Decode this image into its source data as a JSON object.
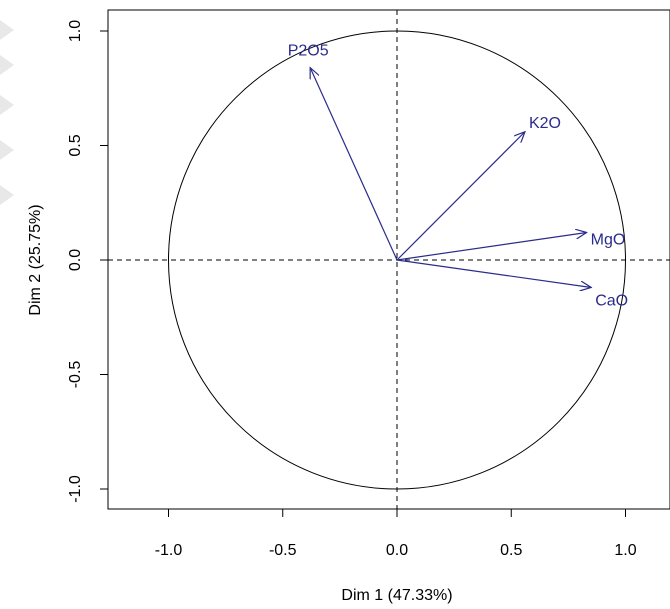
{
  "chart_data": {
    "type": "scatter",
    "subtype": "pca-correlation-circle",
    "title": "",
    "xlabel": "Dim 1 (47.33%)",
    "ylabel": "Dim 2 (25.75%)",
    "xlim": [
      -1.2,
      1.2
    ],
    "ylim": [
      -1.05,
      1.05
    ],
    "x_ticks": [
      -1.0,
      -0.5,
      0.0,
      0.5,
      1.0
    ],
    "x_tick_labels": [
      "-1.0",
      "-0.5",
      "0.0",
      "0.5",
      "1.0"
    ],
    "y_ticks": [
      -1.0,
      -0.5,
      0.0,
      0.5,
      1.0
    ],
    "y_tick_labels": [
      "-1.0",
      "-0.5",
      "0.0",
      "0.5",
      "1.0"
    ],
    "grid": false,
    "unit_circle": true,
    "reference_lines": [
      "x=0",
      "y=0"
    ],
    "arrow_color": "#2b2b8c",
    "label_color": "#2b2b8c",
    "vectors": [
      {
        "name": "P2O5",
        "x": -0.38,
        "y": 0.84
      },
      {
        "name": "K2O",
        "x": 0.56,
        "y": 0.56
      },
      {
        "name": "MgO",
        "x": 0.83,
        "y": 0.12
      },
      {
        "name": "CaO",
        "x": 0.85,
        "y": -0.12
      }
    ]
  }
}
